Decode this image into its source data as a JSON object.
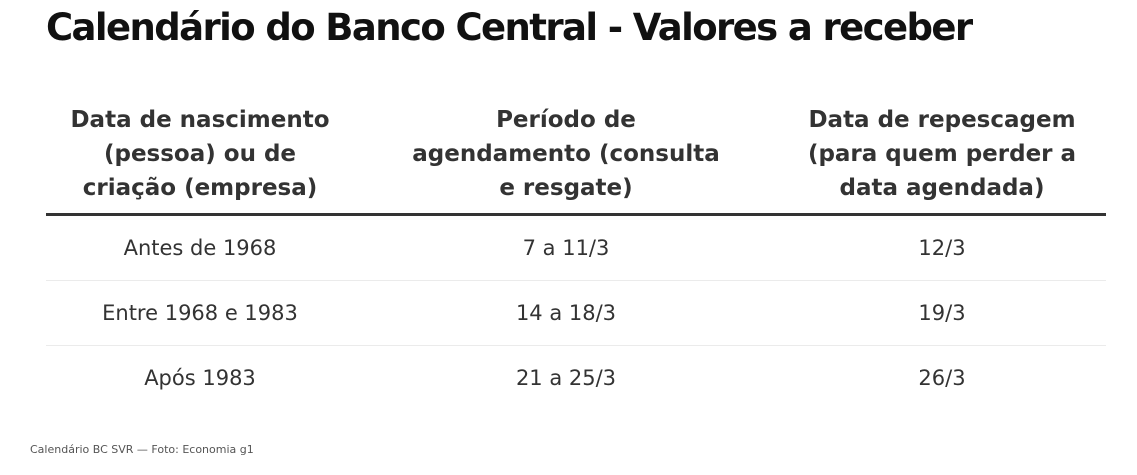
{
  "title": "Calendário do Banco Central - Valores a receber",
  "table": {
    "headers": [
      "Data de nascimento (pessoa) ou de criação (empresa)",
      "Período de agendamento (consulta e resgate)",
      "Data de repescagem (para quem perder a data agendada)"
    ],
    "rows": [
      [
        "Antes de 1968",
        "7 a 11/3",
        "12/3"
      ],
      [
        "Entre 1968 e 1983",
        "14 a 18/3",
        "19/3"
      ],
      [
        "Após 1983",
        "21 a 25/3",
        "26/3"
      ]
    ]
  },
  "caption": "Calendário BC SVR — Foto: Economia g1"
}
